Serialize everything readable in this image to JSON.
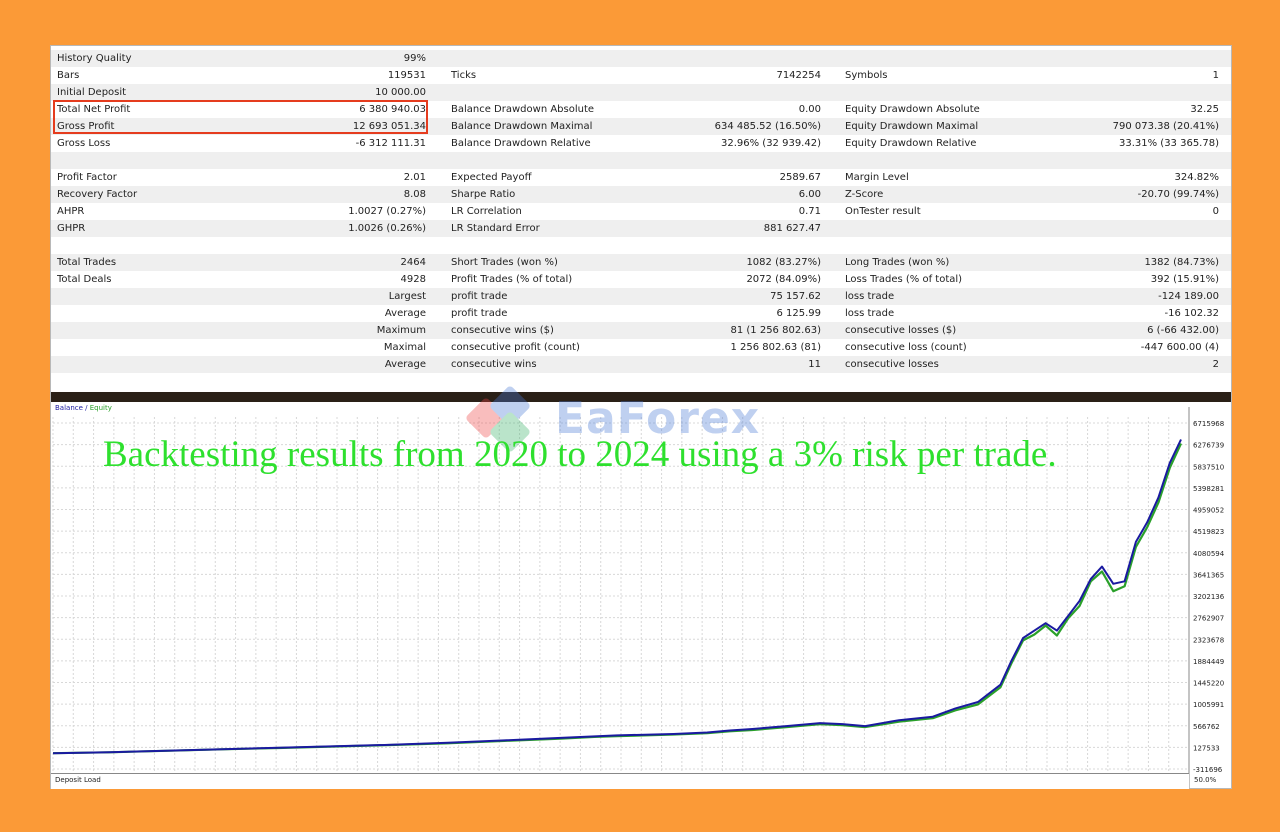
{
  "report": {
    "history_quality": {
      "label": "History Quality",
      "value": "99%"
    },
    "bars": {
      "label": "Bars",
      "value": "119531"
    },
    "ticks": {
      "label": "Ticks",
      "value": "7142254"
    },
    "symbols": {
      "label": "Symbols",
      "value": "1"
    },
    "initial_deposit": {
      "label": "Initial Deposit",
      "value": "10 000.00"
    },
    "total_net_profit": {
      "label": "Total Net Profit",
      "value": "6 380 940.03"
    },
    "gross_profit": {
      "label": "Gross Profit",
      "value": "12 693 051.34"
    },
    "gross_loss": {
      "label": "Gross Loss",
      "value": "-6 312 111.31"
    },
    "balance_dd_abs": {
      "label": "Balance Drawdown Absolute",
      "value": "0.00"
    },
    "balance_dd_max": {
      "label": "Balance Drawdown Maximal",
      "value": "634 485.52 (16.50%)"
    },
    "balance_dd_rel": {
      "label": "Balance Drawdown Relative",
      "value": "32.96% (32 939.42)"
    },
    "equity_dd_abs": {
      "label": "Equity Drawdown Absolute",
      "value": "32.25"
    },
    "equity_dd_max": {
      "label": "Equity Drawdown Maximal",
      "value": "790 073.38 (20.41%)"
    },
    "equity_dd_rel": {
      "label": "Equity Drawdown Relative",
      "value": "33.31% (33 365.78)"
    },
    "profit_factor": {
      "label": "Profit Factor",
      "value": "2.01"
    },
    "recovery_factor": {
      "label": "Recovery Factor",
      "value": "8.08"
    },
    "ahpr": {
      "label": "AHPR",
      "value": "1.0027 (0.27%)"
    },
    "ghpr": {
      "label": "GHPR",
      "value": "1.0026 (0.26%)"
    },
    "expected_payoff": {
      "label": "Expected Payoff",
      "value": "2589.67"
    },
    "sharpe_ratio": {
      "label": "Sharpe Ratio",
      "value": "6.00"
    },
    "lr_correlation": {
      "label": "LR Correlation",
      "value": "0.71"
    },
    "lr_std_error": {
      "label": "LR Standard Error",
      "value": "881 627.47"
    },
    "margin_level": {
      "label": "Margin Level",
      "value": "324.82%"
    },
    "z_score": {
      "label": "Z-Score",
      "value": "-20.70 (99.74%)"
    },
    "ontester": {
      "label": "OnTester result",
      "value": "0"
    },
    "total_trades": {
      "label": "Total Trades",
      "value": "2464"
    },
    "total_deals": {
      "label": "Total Deals",
      "value": "4928"
    },
    "short_trades": {
      "label": "Short Trades (won %)",
      "value": "1082 (83.27%)"
    },
    "profit_trades": {
      "label": "Profit Trades (% of total)",
      "value": "2072 (84.09%)"
    },
    "long_trades": {
      "label": "Long Trades (won %)",
      "value": "1382 (84.73%)"
    },
    "loss_trades": {
      "label": "Loss Trades (% of total)",
      "value": "392 (15.91%)"
    },
    "largest": {
      "label": "Largest",
      "profit_label": "profit trade",
      "profit_value": "75 157.62",
      "loss_label": "loss trade",
      "loss_value": "-124 189.00"
    },
    "average": {
      "label": "Average",
      "profit_label": "profit trade",
      "profit_value": "6 125.99",
      "loss_label": "loss trade",
      "loss_value": "-16 102.32"
    },
    "maximum": {
      "label": "Maximum",
      "profit_label": "consecutive wins ($)",
      "profit_value": "81 (1 256 802.63)",
      "loss_label": "consecutive losses ($)",
      "loss_value": "6 (-66 432.00)"
    },
    "maximal": {
      "label": "Maximal",
      "profit_label": "consecutive profit (count)",
      "profit_value": "1 256 802.63 (81)",
      "loss_label": "consecutive loss (count)",
      "loss_value": "-447 600.00 (4)"
    },
    "average2": {
      "label": "Average",
      "profit_label": "consecutive wins",
      "profit_value": "11",
      "loss_label": "consecutive losses",
      "loss_value": "2"
    }
  },
  "chart": {
    "legend_balance": "Balance",
    "legend_sep": " / ",
    "legend_equity": "Equity",
    "caption": "Backtesting results from 2020 to 2024 using a 3% risk per trade.",
    "watermark": "EaForex",
    "deposit_load_label": "Deposit Load",
    "deposit_load_value": "50.0%",
    "balance_color": "#1a1aa0",
    "equity_color": "#2aa02a"
  },
  "chart_data": {
    "type": "line",
    "title": "",
    "xlabel": "",
    "ylabel": "",
    "y_ticks": [
      "6715968",
      "6276739",
      "5837510",
      "5398281",
      "4959052",
      "4519823",
      "4080594",
      "3641365",
      "3202136",
      "2762907",
      "2323678",
      "1884449",
      "1445220",
      "1005991",
      "566762",
      "127533",
      "-311696"
    ],
    "ylim": [
      -311696,
      6715968
    ],
    "grid": true,
    "series": [
      {
        "name": "Balance",
        "x": [
          0,
          5,
          10,
          15,
          20,
          25,
          30,
          35,
          40,
          45,
          48,
          50,
          55,
          58,
          60,
          62,
          65,
          68,
          70,
          72,
          75,
          78,
          80,
          82,
          84,
          85,
          86,
          87,
          88,
          89,
          90,
          91,
          92,
          93,
          94,
          95,
          96,
          97,
          98,
          99,
          100
        ],
        "y": [
          10000,
          30000,
          60000,
          90000,
          120000,
          150000,
          180000,
          220000,
          270000,
          320000,
          350000,
          370000,
          400000,
          430000,
          470000,
          500000,
          560000,
          620000,
          600000,
          560000,
          680000,
          750000,
          920000,
          1050000,
          1400000,
          1900000,
          2350000,
          2500000,
          2650000,
          2500000,
          2800000,
          3100000,
          3550000,
          3800000,
          3450000,
          3500000,
          4300000,
          4700000,
          5200000,
          5900000,
          6380940
        ]
      },
      {
        "name": "Equity",
        "x": [
          0,
          5,
          10,
          15,
          20,
          25,
          30,
          35,
          40,
          45,
          48,
          50,
          55,
          58,
          60,
          62,
          65,
          68,
          70,
          72,
          75,
          78,
          80,
          82,
          84,
          85,
          86,
          87,
          88,
          89,
          90,
          91,
          92,
          93,
          94,
          95,
          96,
          97,
          98,
          99,
          100
        ],
        "y": [
          10000,
          28000,
          58000,
          88000,
          115000,
          145000,
          175000,
          210000,
          260000,
          305000,
          340000,
          355000,
          390000,
          415000,
          455000,
          480000,
          540000,
          600000,
          580000,
          540000,
          650000,
          720000,
          880000,
          1000000,
          1350000,
          1850000,
          2300000,
          2420000,
          2600000,
          2400000,
          2750000,
          3000000,
          3500000,
          3700000,
          3300000,
          3400000,
          4200000,
          4600000,
          5100000,
          5800000,
          6300000
        ]
      }
    ]
  }
}
